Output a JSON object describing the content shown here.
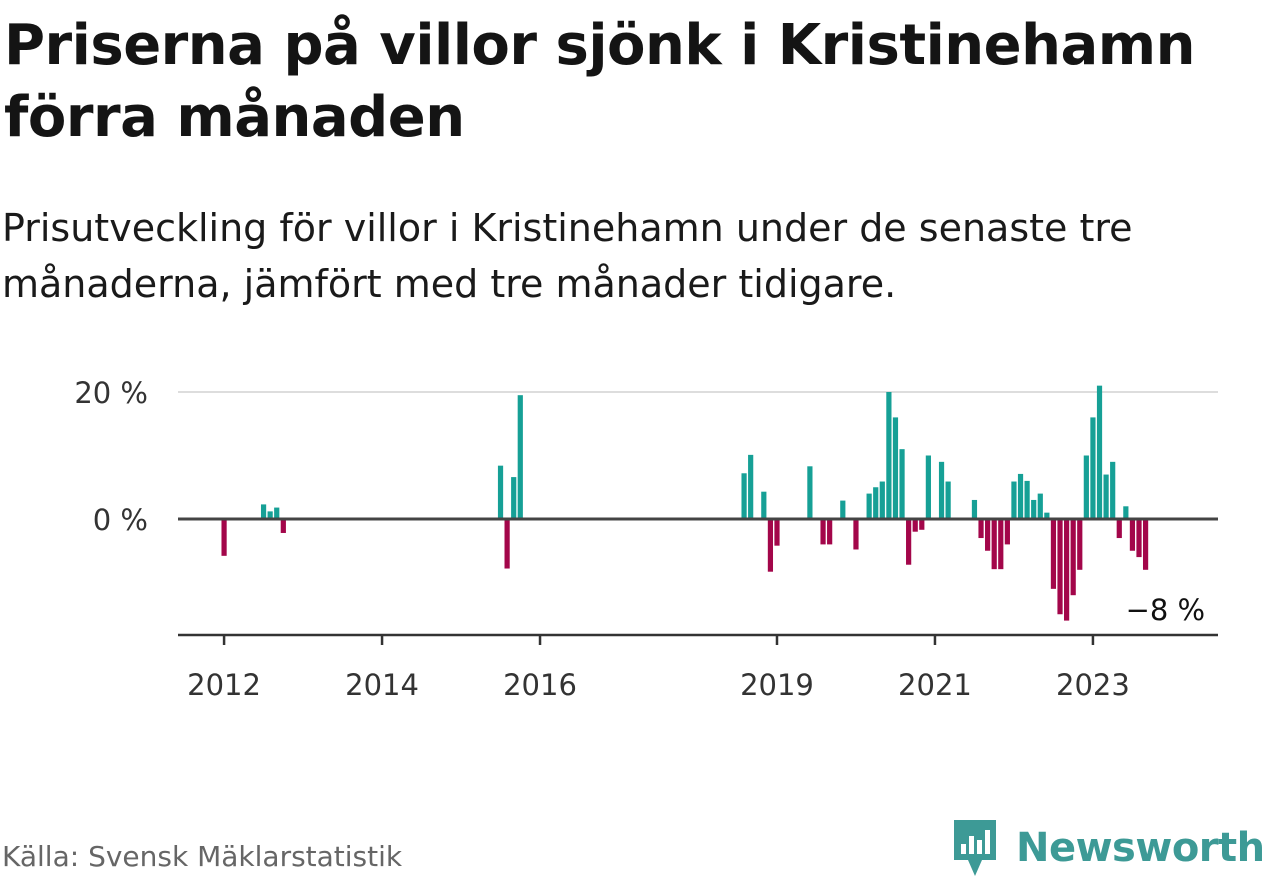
{
  "title": "Priserna på villor sjönk i Kristinehamn förra månaden",
  "subtitle": "Prisutveckling för villor i Kristinehamn under de senaste tre månaderna, jämfört med tre månader tidigare.",
  "source": "Källa: Svensk Mäklarstatistik",
  "brand": "Newsworthy",
  "colors": {
    "positive": "#16a096",
    "negative": "#a3064a",
    "brand": "#3d9a96"
  },
  "chart_data": {
    "type": "bar",
    "unit": "%",
    "y_ticks": [
      {
        "value": 0,
        "label": "0 %"
      },
      {
        "value": 20,
        "label": "20 %"
      }
    ],
    "ylim": [
      -17,
      20
    ],
    "x_ticks": [
      {
        "x": 2012,
        "label": "2012"
      },
      {
        "x": 2014,
        "label": "2014"
      },
      {
        "x": 2016,
        "label": "2016"
      },
      {
        "x": 2019,
        "label": "2019"
      },
      {
        "x": 2021,
        "label": "2021"
      },
      {
        "x": 2023,
        "label": "2023"
      }
    ],
    "x_range": [
      "2011-06",
      "2024-08"
    ],
    "grid": true,
    "annotation": {
      "date": "2023-12",
      "value": -8,
      "label": "−8 %"
    },
    "bars": [
      {
        "date": "2012-01",
        "value": -5.8
      },
      {
        "date": "2012-07",
        "value": 2.3
      },
      {
        "date": "2012-08",
        "value": 1.2
      },
      {
        "date": "2012-09",
        "value": 1.8
      },
      {
        "date": "2012-10",
        "value": -2.2
      },
      {
        "date": "2015-07",
        "value": 8.4
      },
      {
        "date": "2015-08",
        "value": -7.8
      },
      {
        "date": "2015-09",
        "value": 6.6
      },
      {
        "date": "2015-10",
        "value": 19.5
      },
      {
        "date": "2018-08",
        "value": 7.2
      },
      {
        "date": "2018-09",
        "value": 10.1
      },
      {
        "date": "2018-11",
        "value": 4.3
      },
      {
        "date": "2018-12",
        "value": -8.3
      },
      {
        "date": "2019-01",
        "value": -4.2
      },
      {
        "date": "2019-06",
        "value": 8.3
      },
      {
        "date": "2019-08",
        "value": -4.0
      },
      {
        "date": "2019-09",
        "value": -4.0
      },
      {
        "date": "2019-11",
        "value": 2.9
      },
      {
        "date": "2020-01",
        "value": -4.8
      },
      {
        "date": "2020-03",
        "value": 4.0
      },
      {
        "date": "2020-04",
        "value": 5.0
      },
      {
        "date": "2020-05",
        "value": 5.9
      },
      {
        "date": "2020-06",
        "value": 20.0
      },
      {
        "date": "2020-07",
        "value": 16.0
      },
      {
        "date": "2020-08",
        "value": 11.0
      },
      {
        "date": "2020-09",
        "value": -7.2
      },
      {
        "date": "2020-10",
        "value": -2.0
      },
      {
        "date": "2020-11",
        "value": -1.7
      },
      {
        "date": "2020-12",
        "value": 10.0
      },
      {
        "date": "2021-02",
        "value": 9.0
      },
      {
        "date": "2021-03",
        "value": 5.9
      },
      {
        "date": "2021-07",
        "value": 3.0
      },
      {
        "date": "2021-08",
        "value": -3.0
      },
      {
        "date": "2021-09",
        "value": -5.0
      },
      {
        "date": "2021-10",
        "value": -7.9
      },
      {
        "date": "2021-11",
        "value": -7.9
      },
      {
        "date": "2021-12",
        "value": -4.0
      },
      {
        "date": "2022-01",
        "value": 5.9
      },
      {
        "date": "2022-02",
        "value": 7.1
      },
      {
        "date": "2022-03",
        "value": 6.0
      },
      {
        "date": "2022-04",
        "value": 3.0
      },
      {
        "date": "2022-05",
        "value": 4.0
      },
      {
        "date": "2022-06",
        "value": 1.0
      },
      {
        "date": "2022-07",
        "value": -11.0
      },
      {
        "date": "2022-08",
        "value": -15.0
      },
      {
        "date": "2022-09",
        "value": -16.0
      },
      {
        "date": "2022-10",
        "value": -12.0
      },
      {
        "date": "2022-11",
        "value": -8.0
      },
      {
        "date": "2022-12",
        "value": 10.0
      },
      {
        "date": "2023-01",
        "value": 16.0
      },
      {
        "date": "2023-02",
        "value": 21.0
      },
      {
        "date": "2023-03",
        "value": 7.0
      },
      {
        "date": "2023-04",
        "value": 9.0
      },
      {
        "date": "2023-05",
        "value": -3.0
      },
      {
        "date": "2023-06",
        "value": 2.0
      },
      {
        "date": "2023-07",
        "value": -5.0
      },
      {
        "date": "2023-08",
        "value": -6.0
      },
      {
        "date": "2023-09",
        "value": -8.0
      }
    ]
  }
}
